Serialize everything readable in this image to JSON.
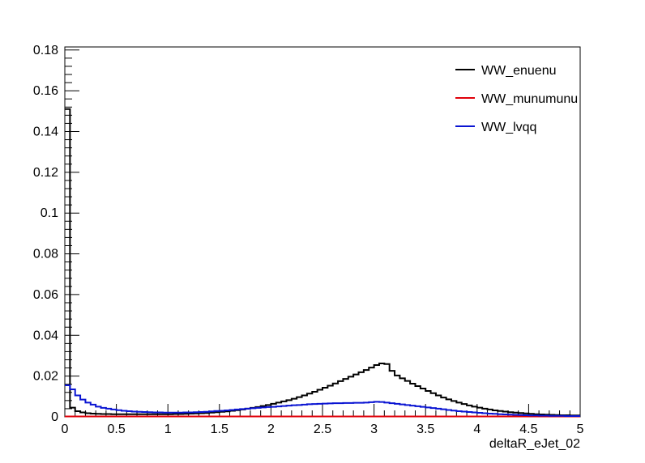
{
  "chart_data": {
    "type": "line",
    "style": "step-histogram",
    "xlabel": "deltaR_eJet_02",
    "ylabel": "",
    "xlim": [
      0,
      5
    ],
    "ylim": [
      0,
      0.1815
    ],
    "x_ticks": [
      "0",
      "0.5",
      "1",
      "1.5",
      "2",
      "2.5",
      "3",
      "3.5",
      "4",
      "4.5",
      "5"
    ],
    "y_ticks": [
      "0",
      "0.02",
      "0.04",
      "0.06",
      "0.08",
      "0.1",
      "0.12",
      "0.14",
      "0.16",
      "0.18"
    ],
    "grid": false,
    "legend_position": "top-right",
    "bin_width": 0.05,
    "series": [
      {
        "name": "WW_enuenu",
        "color": "#000000",
        "values": [
          0.151,
          0.0045,
          0.0028,
          0.0022,
          0.0018,
          0.0016,
          0.0015,
          0.0014,
          0.0014,
          0.0013,
          0.0013,
          0.0013,
          0.0013,
          0.0013,
          0.0013,
          0.0013,
          0.0013,
          0.0013,
          0.0013,
          0.0013,
          0.0013,
          0.0014,
          0.0014,
          0.0015,
          0.0016,
          0.0017,
          0.0018,
          0.0019,
          0.0021,
          0.0023,
          0.0025,
          0.0027,
          0.003,
          0.0033,
          0.0036,
          0.004,
          0.0044,
          0.0048,
          0.0053,
          0.0058,
          0.0064,
          0.007,
          0.0076,
          0.0082,
          0.0089,
          0.0097,
          0.0105,
          0.0114,
          0.0123,
          0.0133,
          0.0143,
          0.0153,
          0.0164,
          0.0175,
          0.0186,
          0.0197,
          0.0208,
          0.0219,
          0.023,
          0.0242,
          0.0254,
          0.0262,
          0.0259,
          0.0226,
          0.0203,
          0.0189,
          0.0176,
          0.0163,
          0.0151,
          0.0139,
          0.0127,
          0.0116,
          0.0105,
          0.0095,
          0.0086,
          0.0078,
          0.007,
          0.0063,
          0.0056,
          0.005,
          0.0045,
          0.004,
          0.0036,
          0.0032,
          0.0029,
          0.0026,
          0.0023,
          0.0021,
          0.0019,
          0.0017,
          0.0015,
          0.0013,
          0.0012,
          0.0011,
          0.001,
          0.0009,
          0.0008,
          0.0008,
          0.0007,
          0.0007
        ]
      },
      {
        "name": "WW_munumunu",
        "color": "#e0000a",
        "values": [
          0.0002,
          0.0002,
          0.0002,
          0.0002,
          0.0002,
          0.0002,
          0.0002,
          0.0002,
          0.0002,
          0.0002,
          0.0002,
          0.0002,
          0.0002,
          0.0002,
          0.0002,
          0.0002,
          0.0002,
          0.0002,
          0.0002,
          0.0002,
          0.0002,
          0.0002,
          0.0002,
          0.0002,
          0.0002,
          0.0002,
          0.0002,
          0.0002,
          0.0002,
          0.0002,
          0.0002,
          0.0002,
          0.0002,
          0.0002,
          0.0002,
          0.0002,
          0.0002,
          0.0002,
          0.0002,
          0.0002,
          0.0002,
          0.0002,
          0.0002,
          0.0002,
          0.0002,
          0.0002,
          0.0002,
          0.0002,
          0.0002,
          0.0002,
          0.0002,
          0.0002,
          0.0002,
          0.0002,
          0.0002,
          0.0002,
          0.0002,
          0.0002,
          0.0002,
          0.0002,
          0.0002,
          0.0002,
          0.0002,
          0.0002,
          0.0002,
          0.0002,
          0.0002,
          0.0002,
          0.0002,
          0.0002,
          0.0002,
          0.0002,
          0.0002,
          0.0002,
          0.0002,
          0.0002,
          0.0002,
          0.0002,
          0.0002,
          0.0002,
          0.0002,
          0.0002,
          0.0002,
          0.0002,
          0.0002,
          0.0002,
          0.0002,
          0.0002,
          0.0002,
          0.0002,
          0.0002,
          0.0002,
          0.0002,
          0.0002,
          0.0002,
          0.0002,
          0.0002,
          0.0002,
          0.0002,
          0.0002
        ]
      },
      {
        "name": "WW_lvqq",
        "color": "#0a14d2",
        "values": [
          0.0155,
          0.0135,
          0.0105,
          0.0085,
          0.007,
          0.006,
          0.005,
          0.0044,
          0.004,
          0.0036,
          0.0033,
          0.003,
          0.0028,
          0.0026,
          0.0025,
          0.0024,
          0.0023,
          0.0022,
          0.0022,
          0.0021,
          0.0021,
          0.0021,
          0.0021,
          0.0022,
          0.0022,
          0.0023,
          0.0024,
          0.0025,
          0.0027,
          0.0029,
          0.003,
          0.0032,
          0.0034,
          0.0036,
          0.0038,
          0.004,
          0.0042,
          0.0044,
          0.0046,
          0.0048,
          0.0049,
          0.0051,
          0.0053,
          0.0055,
          0.0057,
          0.0058,
          0.006,
          0.0062,
          0.0063,
          0.0064,
          0.0065,
          0.0066,
          0.0067,
          0.0067,
          0.0068,
          0.0068,
          0.0069,
          0.0069,
          0.007,
          0.0072,
          0.0074,
          0.0073,
          0.007,
          0.0067,
          0.0064,
          0.0061,
          0.0058,
          0.0055,
          0.0052,
          0.0049,
          0.0046,
          0.0043,
          0.004,
          0.0037,
          0.0034,
          0.0031,
          0.0028,
          0.0026,
          0.0024,
          0.0022,
          0.002,
          0.0018,
          0.0016,
          0.0015,
          0.0013,
          0.0012,
          0.0011,
          0.001,
          0.0009,
          0.0008,
          0.0007,
          0.0007,
          0.0006,
          0.0006,
          0.0005,
          0.0005,
          0.0005,
          0.0004,
          0.0004,
          0.0004
        ]
      }
    ]
  }
}
